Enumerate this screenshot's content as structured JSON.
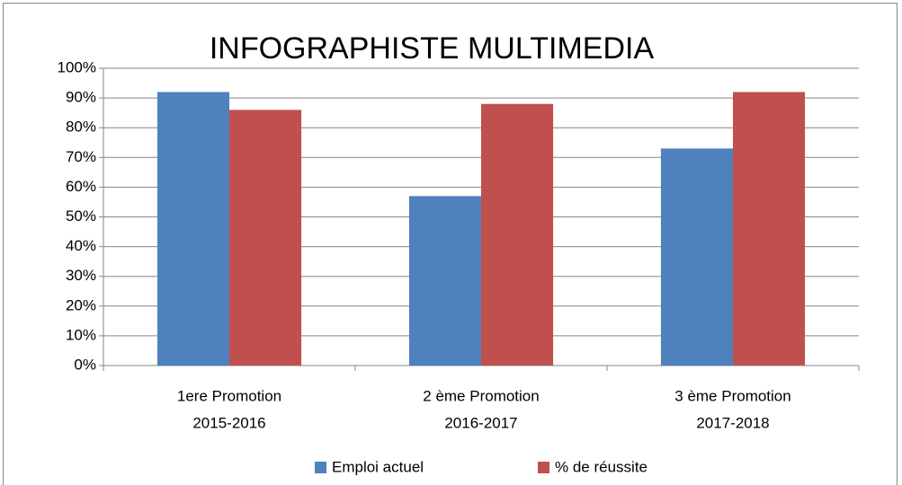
{
  "chart_data": {
    "type": "bar",
    "title": "INFOGRAPHISTE MULTIMEDIA",
    "categories": [
      [
        "1ere Promotion",
        "2015-2016"
      ],
      [
        "2 ème Promotion",
        "2016-2017"
      ],
      [
        "3 ème Promotion",
        "2017-2018"
      ]
    ],
    "series": [
      {
        "name": "Emploi actuel",
        "color": "#4f81bd",
        "values": [
          92,
          57,
          73
        ]
      },
      {
        "name": "% de réussite",
        "color": "#c0504d",
        "values": [
          86,
          88,
          92
        ]
      }
    ],
    "ylim": [
      0,
      100
    ],
    "yticks": [
      {
        "value": 0,
        "label": "0%"
      },
      {
        "value": 10,
        "label": "10%"
      },
      {
        "value": 20,
        "label": "20%"
      },
      {
        "value": 30,
        "label": "30%"
      },
      {
        "value": 40,
        "label": "40%"
      },
      {
        "value": 50,
        "label": "50%"
      },
      {
        "value": 60,
        "label": "60%"
      },
      {
        "value": 70,
        "label": "70%"
      },
      {
        "value": 80,
        "label": "80%"
      },
      {
        "value": 90,
        "label": "90%"
      },
      {
        "value": 100,
        "label": "100%"
      }
    ],
    "grid": true,
    "legend": "bottom"
  }
}
